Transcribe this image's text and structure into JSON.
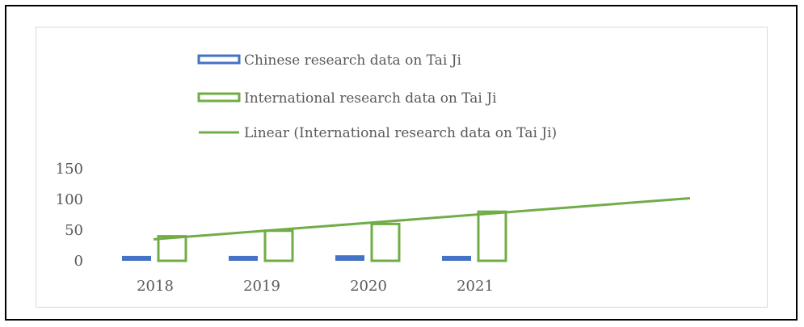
{
  "chart_data": {
    "type": "bar",
    "categories": [
      "2018",
      "2019",
      "2020",
      "2021"
    ],
    "series": [
      {
        "name": "Chinese research data on Tai Ji",
        "values": [
          8,
          8,
          9,
          8
        ],
        "color": "#4472c4",
        "style": "filled"
      },
      {
        "name": "International  research data on Tai Ji",
        "values": [
          40,
          49,
          60,
          80
        ],
        "color": "#70ad47",
        "style": "outline"
      }
    ],
    "trendline": {
      "name": "Linear (International  research data on Tai Ji)",
      "type": "linear",
      "start": 35,
      "end": 102,
      "color": "#70ad47"
    },
    "ylim": [
      0,
      150
    ],
    "yticks": [
      "0",
      "50",
      "100",
      "150"
    ],
    "legend_position": "top",
    "grid": false
  }
}
